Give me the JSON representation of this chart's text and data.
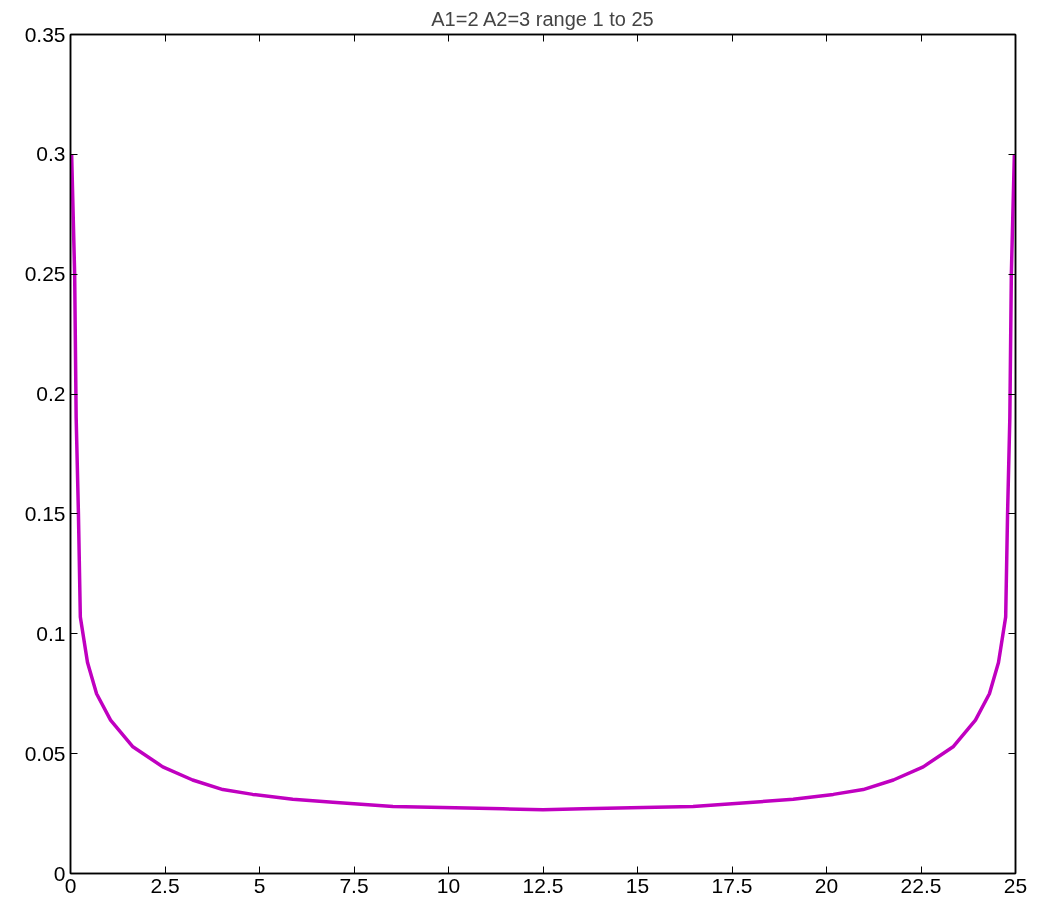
{
  "chart_data": {
    "type": "line",
    "title": "A1=2 A2=3 range 1 to 25",
    "xlim": [
      0,
      25
    ],
    "xticks": [
      0,
      2.5,
      5,
      7.5,
      10,
      12.5,
      15,
      17.5,
      20,
      22.5,
      25
    ],
    "ylim": [
      0,
      0.35
    ],
    "yticks": [
      0,
      0.05,
      0.1,
      0.15,
      0.2,
      0.25,
      0.3,
      0.35
    ],
    "grid": false,
    "marker": "none",
    "line_style": "solid",
    "series": [
      {
        "color": "#c000c0",
        "x": [
          0.03,
          0.11,
          0.15,
          0.21,
          0.26,
          0.45,
          0.69,
          1.06,
          1.64,
          2.44,
          3.23,
          4.03,
          4.82,
          5.88,
          6.94,
          8.53,
          9.85,
          11.44,
          12.5,
          13.56,
          15.15,
          16.47,
          18.06,
          19.12,
          20.18,
          20.97,
          21.77,
          22.56,
          23.36,
          23.94,
          24.31,
          24.55,
          24.74,
          24.79,
          24.85,
          24.89,
          24.97
        ],
        "values": [
          0.3,
          0.25,
          0.19,
          0.15,
          0.107,
          0.088,
          0.075,
          0.064,
          0.053,
          0.0445,
          0.039,
          0.035,
          0.033,
          0.031,
          0.0297,
          0.028,
          0.0275,
          0.027,
          0.0266,
          0.027,
          0.0275,
          0.028,
          0.0297,
          0.031,
          0.033,
          0.035,
          0.039,
          0.0445,
          0.053,
          0.064,
          0.075,
          0.088,
          0.107,
          0.15,
          0.19,
          0.25,
          0.3
        ]
      }
    ]
  }
}
